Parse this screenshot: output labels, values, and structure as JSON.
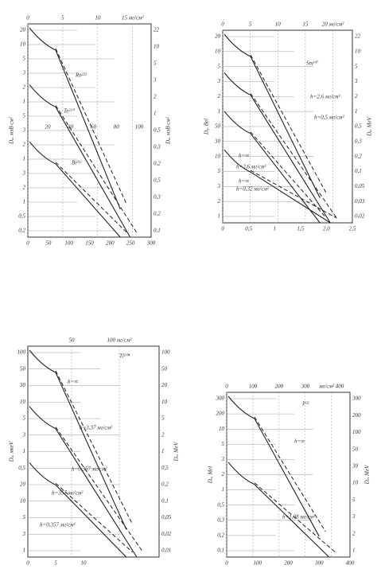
{
  "panels": [
    {
      "top_axis": [
        "0",
        "5",
        "10",
        "15 мг/см²"
      ],
      "bottom_axis": [
        "0",
        "50",
        "100",
        "150",
        "200",
        "250",
        "300"
      ],
      "middle_axis": [
        "20",
        "40",
        "60",
        "80",
        "100"
      ],
      "left_axis": [
        "20",
        "10",
        "5",
        "3",
        "2",
        "1",
        "5",
        "3",
        "2",
        "1",
        "3",
        "2",
        "1",
        "0,5",
        "0,2"
      ],
      "right_axis": [
        "22",
        "10",
        "5",
        "3",
        "2",
        "1",
        "0,5",
        "0,3",
        "0,2",
        "0,5",
        "0,3",
        "0,2",
        "0,1"
      ],
      "left_label": "Dₐ, мэВ·см²",
      "right_label": "Dₐ, мэВ·см²",
      "annotations": [
        "Rn²²²",
        "Te²²⁰",
        "Bi²¹²"
      ]
    },
    {
      "top_axis": [
        "0",
        "5",
        "10",
        "15",
        "20 мг/см²"
      ],
      "bottom_axis": [
        "0",
        "0,5",
        "1",
        "1,5",
        "2,0",
        "2,5"
      ],
      "left_axis": [
        "20",
        "10",
        "5",
        "3",
        "2",
        "1",
        "50",
        "30",
        "10",
        "5",
        "3",
        "2",
        "1"
      ],
      "right_axis": [
        "22",
        "10",
        "5",
        "3",
        "2",
        "1",
        "0,5",
        "0,3",
        "0,2",
        "0,1",
        "0,05",
        "0,03",
        "0,02"
      ],
      "left_label": "Dₐ, Bel",
      "right_label": "Dₐ, MeV",
      "annotations": [
        "Sm¹⁴⁷",
        "h=∞",
        "h=2,6 мг/см²",
        "h=0,5 мг/см²",
        "h=∞",
        "h=2,6 мг/см²",
        "h=0,32 мг/см²"
      ]
    },
    {
      "top_axis": [
        "50",
        "100 мг/см²"
      ],
      "bottom_axis": [
        "0",
        "5",
        "10"
      ],
      "left_axis": [
        "100",
        "50",
        "30",
        "10",
        "5",
        "3",
        "1",
        "0,5",
        "20",
        "10",
        "5",
        "3",
        "1"
      ],
      "right_axis": [
        "100",
        "50",
        "20",
        "10",
        "5",
        "2",
        "1",
        "0,5",
        "0,2",
        "0,1",
        "0,05",
        "0,02",
        "0,01"
      ],
      "left_label": "Dₐ, мкеV",
      "right_label": "Dₐ, MeV",
      "annotations": [
        "Tl²⁰⁴",
        "h=∞",
        "h=3,37 мг/см²",
        "h=0,357 мг/см²",
        "h=357 мг/см²",
        "h=0,357 мг/см²"
      ]
    },
    {
      "top_axis": [
        "0",
        "100",
        "200",
        "300",
        "мг/см² 400"
      ],
      "bottom_axis": [
        "0",
        "100",
        "200",
        "300",
        "400"
      ],
      "left_axis": [
        "300",
        "200",
        "10",
        "5",
        "3",
        "2",
        "1",
        "0,5",
        "0,3",
        "0,2",
        "0,1"
      ],
      "right_axis": [
        "300",
        "200",
        "100",
        "50",
        "30",
        "10",
        "5",
        "3",
        "2",
        "1"
      ],
      "left_label": "Dₐ, Mel",
      "right_label": "Dₐ, MeV",
      "annotations": [
        "P³²",
        "h=∞",
        "h=1,08 мг/см²"
      ]
    }
  ]
}
